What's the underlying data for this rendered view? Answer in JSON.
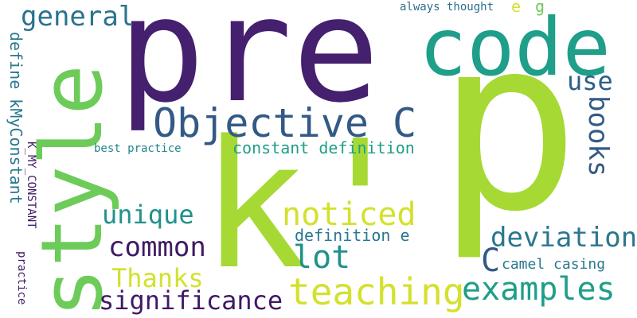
{
  "words": {
    "pre": "pre",
    "p": "p",
    "k_prime": "k'",
    "code": "code",
    "style": "style",
    "objective_c": "Objective C",
    "general": "general",
    "use": "use",
    "books": "books",
    "define_kmyconstant": "define kMyConstant",
    "k_my_constant": "K_MY_CONSTANT",
    "practice": "practice",
    "best_practice": "best practice",
    "constant_definition": "constant definition",
    "noticed": "noticed",
    "unique": "unique",
    "common": "common",
    "lot": "lot",
    "definition_e": "definition e",
    "deviation": "deviation",
    "c": "C",
    "camel_casing": "camel casing",
    "thanks": "Thanks",
    "teaching": "teaching",
    "examples": "examples",
    "significance": "significance",
    "always_thought": "always thought",
    "e": "e",
    "g": "g"
  },
  "colors": {
    "background": "#ffffff",
    "dark_purple": "#45206f",
    "purple": "#3f1a66",
    "slate_blue": "#335a86",
    "teal": "#23858d",
    "green_teal": "#1f9e89",
    "green": "#6dcb59",
    "lime": "#a6d934",
    "yellow": "#d3e12d"
  }
}
